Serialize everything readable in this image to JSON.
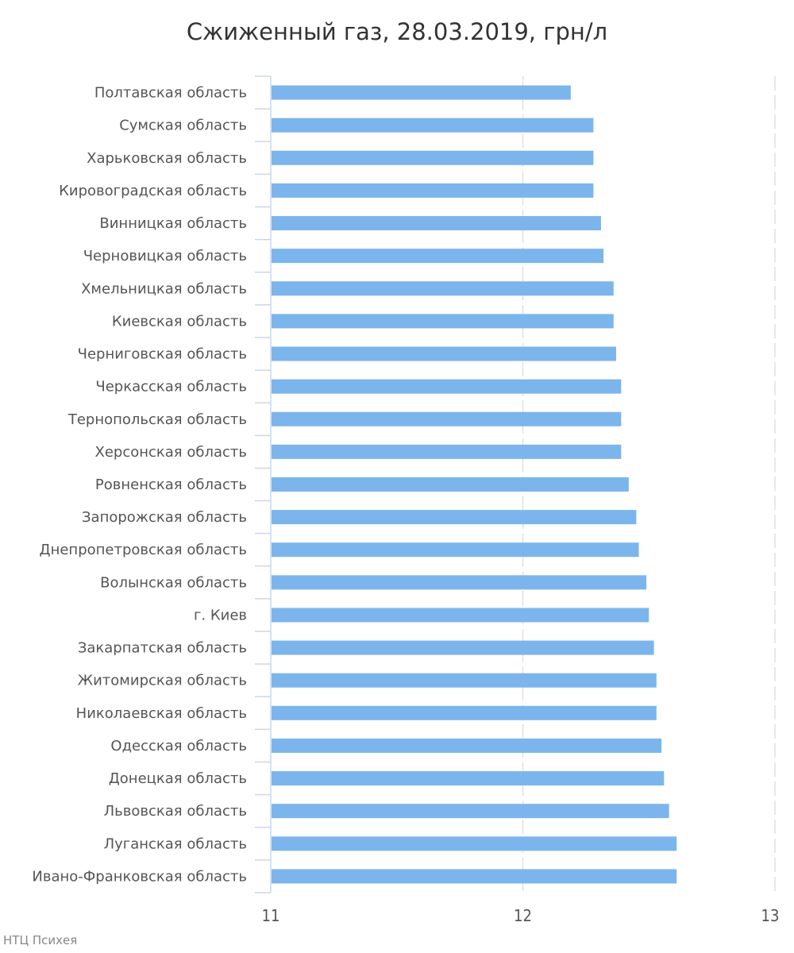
{
  "chart_data": {
    "type": "bar",
    "orientation": "horizontal",
    "title": "Сжиженный газ, 28.03.2019, грн/л",
    "xlabel": "",
    "ylabel": "",
    "xlim": [
      11,
      13
    ],
    "x_ticks": [
      "11",
      "12",
      "13"
    ],
    "grid": true,
    "bar_color": "#7cb5ec",
    "categories": [
      "Полтавская область",
      "Сумская область",
      "Харьковская область",
      "Кировоградская область",
      "Винницкая область",
      "Черновицкая область",
      "Хмельницкая область",
      "Киевская область",
      "Черниговская область",
      "Черкасская область",
      "Тернопольская область",
      "Херсонская область",
      "Ровненская область",
      "Запорожская область",
      "Днепропетровская область",
      "Волынская область",
      "г. Киев",
      "Закарпатская область",
      "Житомирская область",
      "Николаевская область",
      "Одесская область",
      "Донецкая область",
      "Львовская область",
      "Луганская область",
      "Ивано-Франковская область"
    ],
    "values": [
      12.19,
      12.28,
      12.28,
      12.28,
      12.31,
      12.32,
      12.36,
      12.36,
      12.37,
      12.39,
      12.39,
      12.39,
      12.42,
      12.45,
      12.46,
      12.49,
      12.5,
      12.52,
      12.53,
      12.53,
      12.55,
      12.56,
      12.58,
      12.61,
      12.61
    ]
  },
  "credit": "НТЦ Психея"
}
